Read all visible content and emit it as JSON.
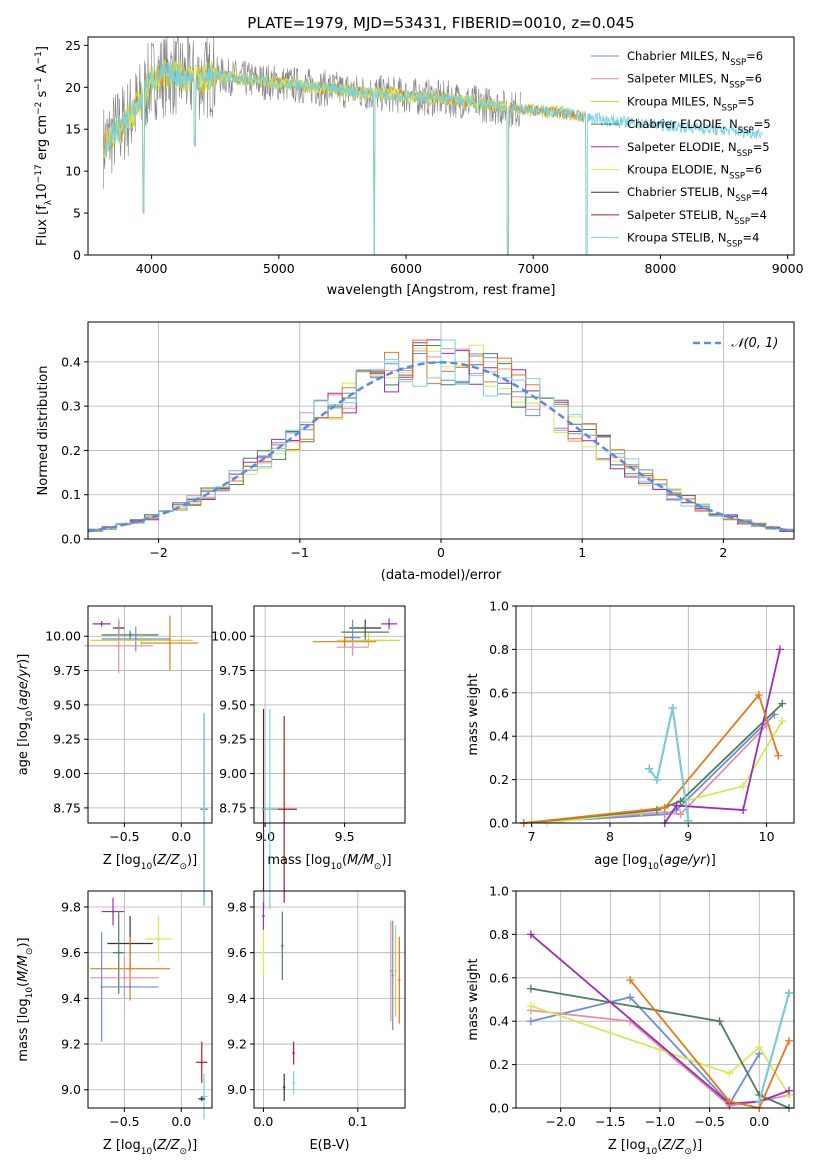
{
  "colors": {
    "Chabrier MILES": "#6b8fd6",
    "Salpeter MILES": "#e88fa8",
    "Kroupa MILES": "#c8d23a",
    "Chabrier ELODIE": "#4f7d5c",
    "Salpeter ELODIE": "#9a2fb5",
    "Kroupa ELODIE": "#e8e84a",
    "Chabrier STELIB": "#333333",
    "Salpeter STELIB": "#b22222",
    "Kroupa STELIB": "#79d0e0",
    "spectrum_grey": "#808080",
    "orange": "#e07b20",
    "lime": "#d4ea5a",
    "gaussian": "#5b8bd9"
  },
  "chart_data": [
    {
      "id": "spectrum",
      "type": "line",
      "title": "PLATE=1979, MJD=53431, FIBERID=0010, z=0.045",
      "xlabel": "wavelength [Angstrom, rest frame]",
      "ylabel": "Flux [f$_\\lambda$10$^{-17}$ erg cm$^{-2}$ s$^{-1}$ A$^{-1}$]",
      "ylabel_parts": {
        "a": "Flux [f",
        "b": "λ",
        "c": "10",
        "d": "−17",
        "e": " erg cm",
        "f": "−2",
        "g": " s",
        "h": "−1",
        "i": " A",
        "j": "−1",
        "k": "]"
      },
      "xlim": [
        3500,
        9050
      ],
      "ylim": [
        0,
        26
      ],
      "xticks": [
        "4000",
        "5000",
        "6000",
        "7000",
        "8000",
        "9000"
      ],
      "yticks": [
        "0",
        "5",
        "10",
        "15",
        "20",
        "25"
      ],
      "legend_position": "top-right",
      "legend": [
        {
          "name": "Chabrier MILES",
          "n": "6"
        },
        {
          "name": "Salpeter MILES",
          "n": "6"
        },
        {
          "name": "Kroupa MILES",
          "n": "5"
        },
        {
          "name": "Chabrier ELODIE",
          "n": "5"
        },
        {
          "name": "Salpeter ELODIE",
          "n": "5"
        },
        {
          "name": "Kroupa ELODIE",
          "n": "6"
        },
        {
          "name": "Chabrier STELIB",
          "n": "4"
        },
        {
          "name": "Salpeter STELIB",
          "n": "4"
        },
        {
          "name": "Kroupa STELIB",
          "n": "4"
        }
      ],
      "legend_suffix": ", N",
      "legend_sub": "SSP",
      "continuum": {
        "x": [
          3620,
          3700,
          3800,
          3900,
          4000,
          4100,
          4200,
          4300,
          4400,
          4500,
          4700,
          5000,
          5300,
          5600,
          6000,
          6400,
          6800,
          7200,
          7600,
          8000,
          8400,
          8800
        ],
        "y": [
          13,
          14.5,
          16,
          18,
          21,
          21.5,
          21.5,
          21,
          21,
          21.5,
          21,
          20.5,
          20,
          19.5,
          19,
          18.5,
          17.5,
          17,
          16,
          15.5,
          15,
          14.5
        ]
      },
      "spectrum_end": {
        "grey": 6900,
        "miles": 7420,
        "elodie": 6800,
        "stelib": 8800
      },
      "absorption_dips": [
        {
          "x": 3935,
          "y": 5
        },
        {
          "x": 4340,
          "y": 13
        },
        {
          "x": 5750,
          "y": 0
        },
        {
          "x": 6560,
          "y": 17
        },
        {
          "x": 6800,
          "y": 0
        },
        {
          "x": 7420,
          "y": 0
        }
      ]
    },
    {
      "id": "residuals",
      "type": "histogram",
      "xlabel": "(data-model)/error",
      "ylabel": "Normed distribution",
      "xlim": [
        -2.5,
        2.5
      ],
      "ylim": [
        0,
        0.49
      ],
      "xticks": [
        "−2",
        "−1",
        "0",
        "1",
        "2"
      ],
      "yticks": [
        "0.0",
        "0.1",
        "0.2",
        "0.3",
        "0.4"
      ],
      "grid": true,
      "legend_position": "top-right",
      "gaussian_label": "𝒩(0, 1)",
      "bin_width": 0.1
    },
    {
      "id": "age-vs-Z",
      "type": "scatter-errorbar",
      "xlabel": "Z [log$_{10}$(Z/Z$_\\odot$)]",
      "ylabel": "age  [log$_{10}$(age/yr)]",
      "xlim": [
        -0.82,
        0.27
      ],
      "ylim": [
        8.64,
        10.22
      ],
      "xticks": [
        "−0.5",
        "0.0"
      ],
      "yticks": [
        "8.75",
        "9.00",
        "9.25",
        "9.50",
        "9.75",
        "10.00"
      ],
      "points": [
        {
          "x": -0.7,
          "y": 10.09,
          "xe": 0.08,
          "ye": 0.02,
          "c": "Salpeter ELODIE"
        },
        {
          "x": -0.55,
          "y": 10.06,
          "xe": 0.05,
          "ye": 0.05,
          "c": "Chabrier STELIB"
        },
        {
          "x": -0.45,
          "y": 10.01,
          "xe": 0.25,
          "ye": 0.03,
          "c": "Chabrier ELODIE"
        },
        {
          "x": -0.55,
          "y": 9.93,
          "xe": 0.3,
          "ye": 0.2,
          "c": "Salpeter MILES"
        },
        {
          "x": -0.4,
          "y": 9.98,
          "xe": 0.3,
          "ye": 0.09,
          "c": "Chabrier MILES"
        },
        {
          "x": -0.35,
          "y": 9.97,
          "xe": 0.45,
          "ye": 0.05,
          "c": "Kroupa MILES"
        },
        {
          "x": -0.1,
          "y": 9.95,
          "xe": 0.25,
          "ye": 0.2,
          "c": "orange"
        },
        {
          "x": 0.2,
          "y": 8.74,
          "xe": 0.03,
          "ye": 0.7,
          "c": "Chabrier STELIB"
        },
        {
          "x": 0.2,
          "y": 8.74,
          "xe": 0.02,
          "ye": 0.7,
          "c": "Kroupa STELIB"
        }
      ]
    },
    {
      "id": "age-vs-mass",
      "type": "scatter-errorbar",
      "xlabel": "mass [log$_{10}$(M/M$_\\odot$)]",
      "ylabel": "",
      "xlim": [
        8.93,
        9.88
      ],
      "ylim": [
        8.64,
        10.22
      ],
      "xticks": [
        "9.0",
        "9.5"
      ],
      "yticks": [
        "8.75",
        "9.00",
        "9.25",
        "9.50",
        "9.75",
        "10.00"
      ],
      "points": [
        {
          "x": 9.78,
          "y": 10.09,
          "xe": 0.05,
          "ye": 0.04,
          "c": "Salpeter ELODIE"
        },
        {
          "x": 9.63,
          "y": 10.06,
          "xe": 0.1,
          "ye": 0.06,
          "c": "Chabrier STELIB"
        },
        {
          "x": 9.63,
          "y": 10.03,
          "xe": 0.15,
          "ye": 0.07,
          "c": "Chabrier ELODIE"
        },
        {
          "x": 9.65,
          "y": 9.97,
          "xe": 0.2,
          "ye": 0.05,
          "c": "Kroupa MILES"
        },
        {
          "x": 9.55,
          "y": 9.99,
          "xe": 0.05,
          "ye": 0.13,
          "c": "Chabrier MILES"
        },
        {
          "x": 9.5,
          "y": 9.96,
          "xe": 0.2,
          "ye": 0.04,
          "c": "orange"
        },
        {
          "x": 9.55,
          "y": 9.92,
          "xe": 0.1,
          "ye": 0.05,
          "c": "Salpeter MILES"
        },
        {
          "x": 9.12,
          "y": 8.74,
          "xe": 0.08,
          "ye": 0.68,
          "c": "Salpeter STELIB"
        },
        {
          "x": 8.99,
          "y": 8.74,
          "xe": 0.01,
          "ye": 0.73,
          "c": "Chabrier STELIB"
        },
        {
          "x": 9.03,
          "y": 8.74,
          "xe": 0.05,
          "ye": 0.73,
          "c": "Kroupa STELIB"
        }
      ]
    },
    {
      "id": "weight-vs-age",
      "type": "line",
      "xlabel": "age  [log$_{10}$(age/yr)]",
      "ylabel": "mass weight",
      "xlim": [
        6.8,
        10.35
      ],
      "ylim": [
        0,
        1
      ],
      "xticks": [
        "7",
        "8",
        "9",
        "10"
      ],
      "yticks": [
        "0.0",
        "0.2",
        "0.4",
        "0.6",
        "0.8",
        "1.0"
      ],
      "series": [
        {
          "c": "Chabrier MILES",
          "x": [
            6.9,
            8.7,
            8.85,
            10.1
          ],
          "y": [
            0.0,
            0.04,
            0.06,
            0.5
          ]
        },
        {
          "c": "Salpeter MILES",
          "x": [
            6.9,
            8.7,
            8.9,
            10.0
          ],
          "y": [
            0.0,
            0.05,
            0.04,
            0.45
          ]
        },
        {
          "c": "lime",
          "x": [
            7.2,
            8.4,
            9.7,
            10.2
          ],
          "y": [
            0.0,
            0.05,
            0.17,
            0.47
          ]
        },
        {
          "c": "Chabrier ELODIE",
          "x": [
            6.9,
            8.6,
            8.9,
            10.2
          ],
          "y": [
            0.0,
            0.06,
            0.1,
            0.55
          ]
        },
        {
          "c": "Salpeter ELODIE",
          "x": [
            8.7,
            8.85,
            9.7,
            10.17
          ],
          "y": [
            0.0,
            0.08,
            0.06,
            0.8
          ]
        },
        {
          "c": "orange",
          "x": [
            6.9,
            8.7,
            9.9,
            10.15
          ],
          "y": [
            0.0,
            0.07,
            0.59,
            0.31
          ]
        },
        {
          "c": "Chabrier STELIB",
          "x": [
            8.5,
            8.6,
            8.8,
            9.0
          ],
          "y": [
            0.25,
            0.2,
            0.53,
            0.01
          ]
        },
        {
          "c": "Kroupa STELIB",
          "x": [
            8.5,
            8.6,
            8.8,
            9.0
          ],
          "y": [
            0.25,
            0.2,
            0.53,
            0.01
          ]
        }
      ]
    },
    {
      "id": "mass-vs-Z",
      "type": "scatter-errorbar",
      "xlabel": "Z [log$_{10}$(Z/Z$_\\odot$)]",
      "ylabel": "mass [log$_{10}$(M/M$_\\odot$)]",
      "xlim": [
        -0.82,
        0.27
      ],
      "ylim": [
        8.92,
        9.87
      ],
      "xticks": [
        "−0.5",
        "0.0"
      ],
      "yticks": [
        "9.0",
        "9.2",
        "9.4",
        "9.6",
        "9.8"
      ],
      "points": [
        {
          "x": -0.6,
          "y": 9.78,
          "xe": 0.1,
          "ye": 0.06,
          "c": "Salpeter ELODIE"
        },
        {
          "x": -0.45,
          "y": 9.64,
          "xe": 0.2,
          "ye": 0.12,
          "c": "Chabrier STELIB"
        },
        {
          "x": -0.2,
          "y": 9.66,
          "xe": 0.12,
          "ye": 0.1,
          "c": "lime"
        },
        {
          "x": -0.55,
          "y": 9.6,
          "xe": 0.05,
          "ye": 0.18,
          "c": "Chabrier ELODIE"
        },
        {
          "x": -0.45,
          "y": 9.53,
          "xe": 0.35,
          "ye": 0.14,
          "c": "orange"
        },
        {
          "x": -0.5,
          "y": 9.49,
          "xe": 0.3,
          "ye": 0.09,
          "c": "Salpeter MILES"
        },
        {
          "x": -0.7,
          "y": 9.45,
          "xe": 0.0,
          "ye": 0.24,
          "c": "Chabrier MILES"
        },
        {
          "x": -0.45,
          "y": 9.45,
          "xe": 0.25,
          "ye": 0.0,
          "c": "Chabrier MILES"
        },
        {
          "x": 0.18,
          "y": 9.12,
          "xe": 0.05,
          "ye": 0.09,
          "c": "Salpeter STELIB"
        },
        {
          "x": 0.2,
          "y": 8.97,
          "xe": 0.03,
          "ye": 0.1,
          "c": "Kroupa STELIB"
        },
        {
          "x": 0.18,
          "y": 8.96,
          "xe": 0.03,
          "ye": 0.01,
          "c": "Chabrier STELIB"
        }
      ]
    },
    {
      "id": "mass-vs-EBV",
      "type": "scatter-errorbar",
      "xlabel": "E(B-V)",
      "ylabel": "",
      "xlim": [
        -0.01,
        0.15
      ],
      "ylim": [
        8.92,
        9.87
      ],
      "xticks": [
        "0.0",
        "0.1"
      ],
      "yticks": [
        "9.0",
        "9.2",
        "9.4",
        "9.6",
        "9.8"
      ],
      "points": [
        {
          "x": 0.0,
          "y": 9.76,
          "xe": 0.0,
          "ye": 0.06,
          "c": "Salpeter ELODIE"
        },
        {
          "x": 0.0,
          "y": 9.6,
          "xe": 0.0,
          "ye": 0.1,
          "c": "Kroupa ELODIE"
        },
        {
          "x": 0.02,
          "y": 9.63,
          "xe": 0.0,
          "ye": 0.15,
          "c": "Chabrier ELODIE"
        },
        {
          "x": 0.137,
          "y": 9.5,
          "xe": 0.0,
          "ye": 0.24,
          "c": "Chabrier MILES"
        },
        {
          "x": 0.135,
          "y": 9.52,
          "xe": 0.0,
          "ye": 0.22,
          "c": "Salpeter MILES"
        },
        {
          "x": 0.14,
          "y": 9.52,
          "xe": 0.0,
          "ye": 0.2,
          "c": "Kroupa MILES"
        },
        {
          "x": 0.144,
          "y": 9.48,
          "xe": 0.0,
          "ye": 0.19,
          "c": "orange"
        },
        {
          "x": 0.032,
          "y": 9.16,
          "xe": 0.0,
          "ye": 0.05,
          "c": "Salpeter STELIB"
        },
        {
          "x": 0.022,
          "y": 9.01,
          "xe": 0.0,
          "ye": 0.06,
          "c": "Chabrier STELIB"
        },
        {
          "x": 0.032,
          "y": 9.03,
          "xe": 0.0,
          "ye": 0.05,
          "c": "Kroupa STELIB"
        }
      ]
    },
    {
      "id": "weight-vs-Z",
      "type": "line",
      "xlabel": "Z [log$_{10}$(Z/Z$_\\odot$)]",
      "ylabel": "mass weight",
      "xlim": [
        -2.45,
        0.35
      ],
      "ylim": [
        0,
        1
      ],
      "xticks": [
        "−2.0",
        "−1.5",
        "−1.0",
        "−0.5",
        "0.0"
      ],
      "yticks": [
        "0.0",
        "0.2",
        "0.4",
        "0.6",
        "0.8",
        "1.0"
      ],
      "series": [
        {
          "c": "Chabrier MILES",
          "x": [
            -2.3,
            -1.3,
            -0.3,
            0.0
          ],
          "y": [
            0.4,
            0.51,
            0.02,
            0.25
          ]
        },
        {
          "c": "Salpeter MILES",
          "x": [
            -2.3,
            -1.3,
            -0.3,
            0.0,
            0.3
          ],
          "y": [
            0.45,
            0.4,
            0.01,
            0.03,
            0.06
          ]
        },
        {
          "c": "lime",
          "x": [
            -2.3,
            -0.3,
            0.0,
            0.3
          ],
          "y": [
            0.47,
            0.16,
            0.28,
            0.06
          ]
        },
        {
          "c": "Chabrier ELODIE",
          "x": [
            -2.3,
            -0.4,
            0.0,
            0.3
          ],
          "y": [
            0.55,
            0.4,
            0.06,
            0.0
          ]
        },
        {
          "c": "Salpeter ELODIE",
          "x": [
            -2.3,
            -0.3,
            0.0,
            0.3
          ],
          "y": [
            0.8,
            0.02,
            0.03,
            0.08
          ]
        },
        {
          "c": "orange",
          "x": [
            -1.3,
            -0.3,
            0.0,
            0.3
          ],
          "y": [
            0.59,
            0.03,
            0.0,
            0.31
          ]
        },
        {
          "c": "Chabrier STELIB",
          "x": [
            0.0,
            0.3
          ],
          "y": [
            0.03,
            0.53
          ]
        },
        {
          "c": "Kroupa STELIB",
          "x": [
            0.0,
            0.3
          ],
          "y": [
            0.03,
            0.53
          ]
        }
      ]
    }
  ]
}
